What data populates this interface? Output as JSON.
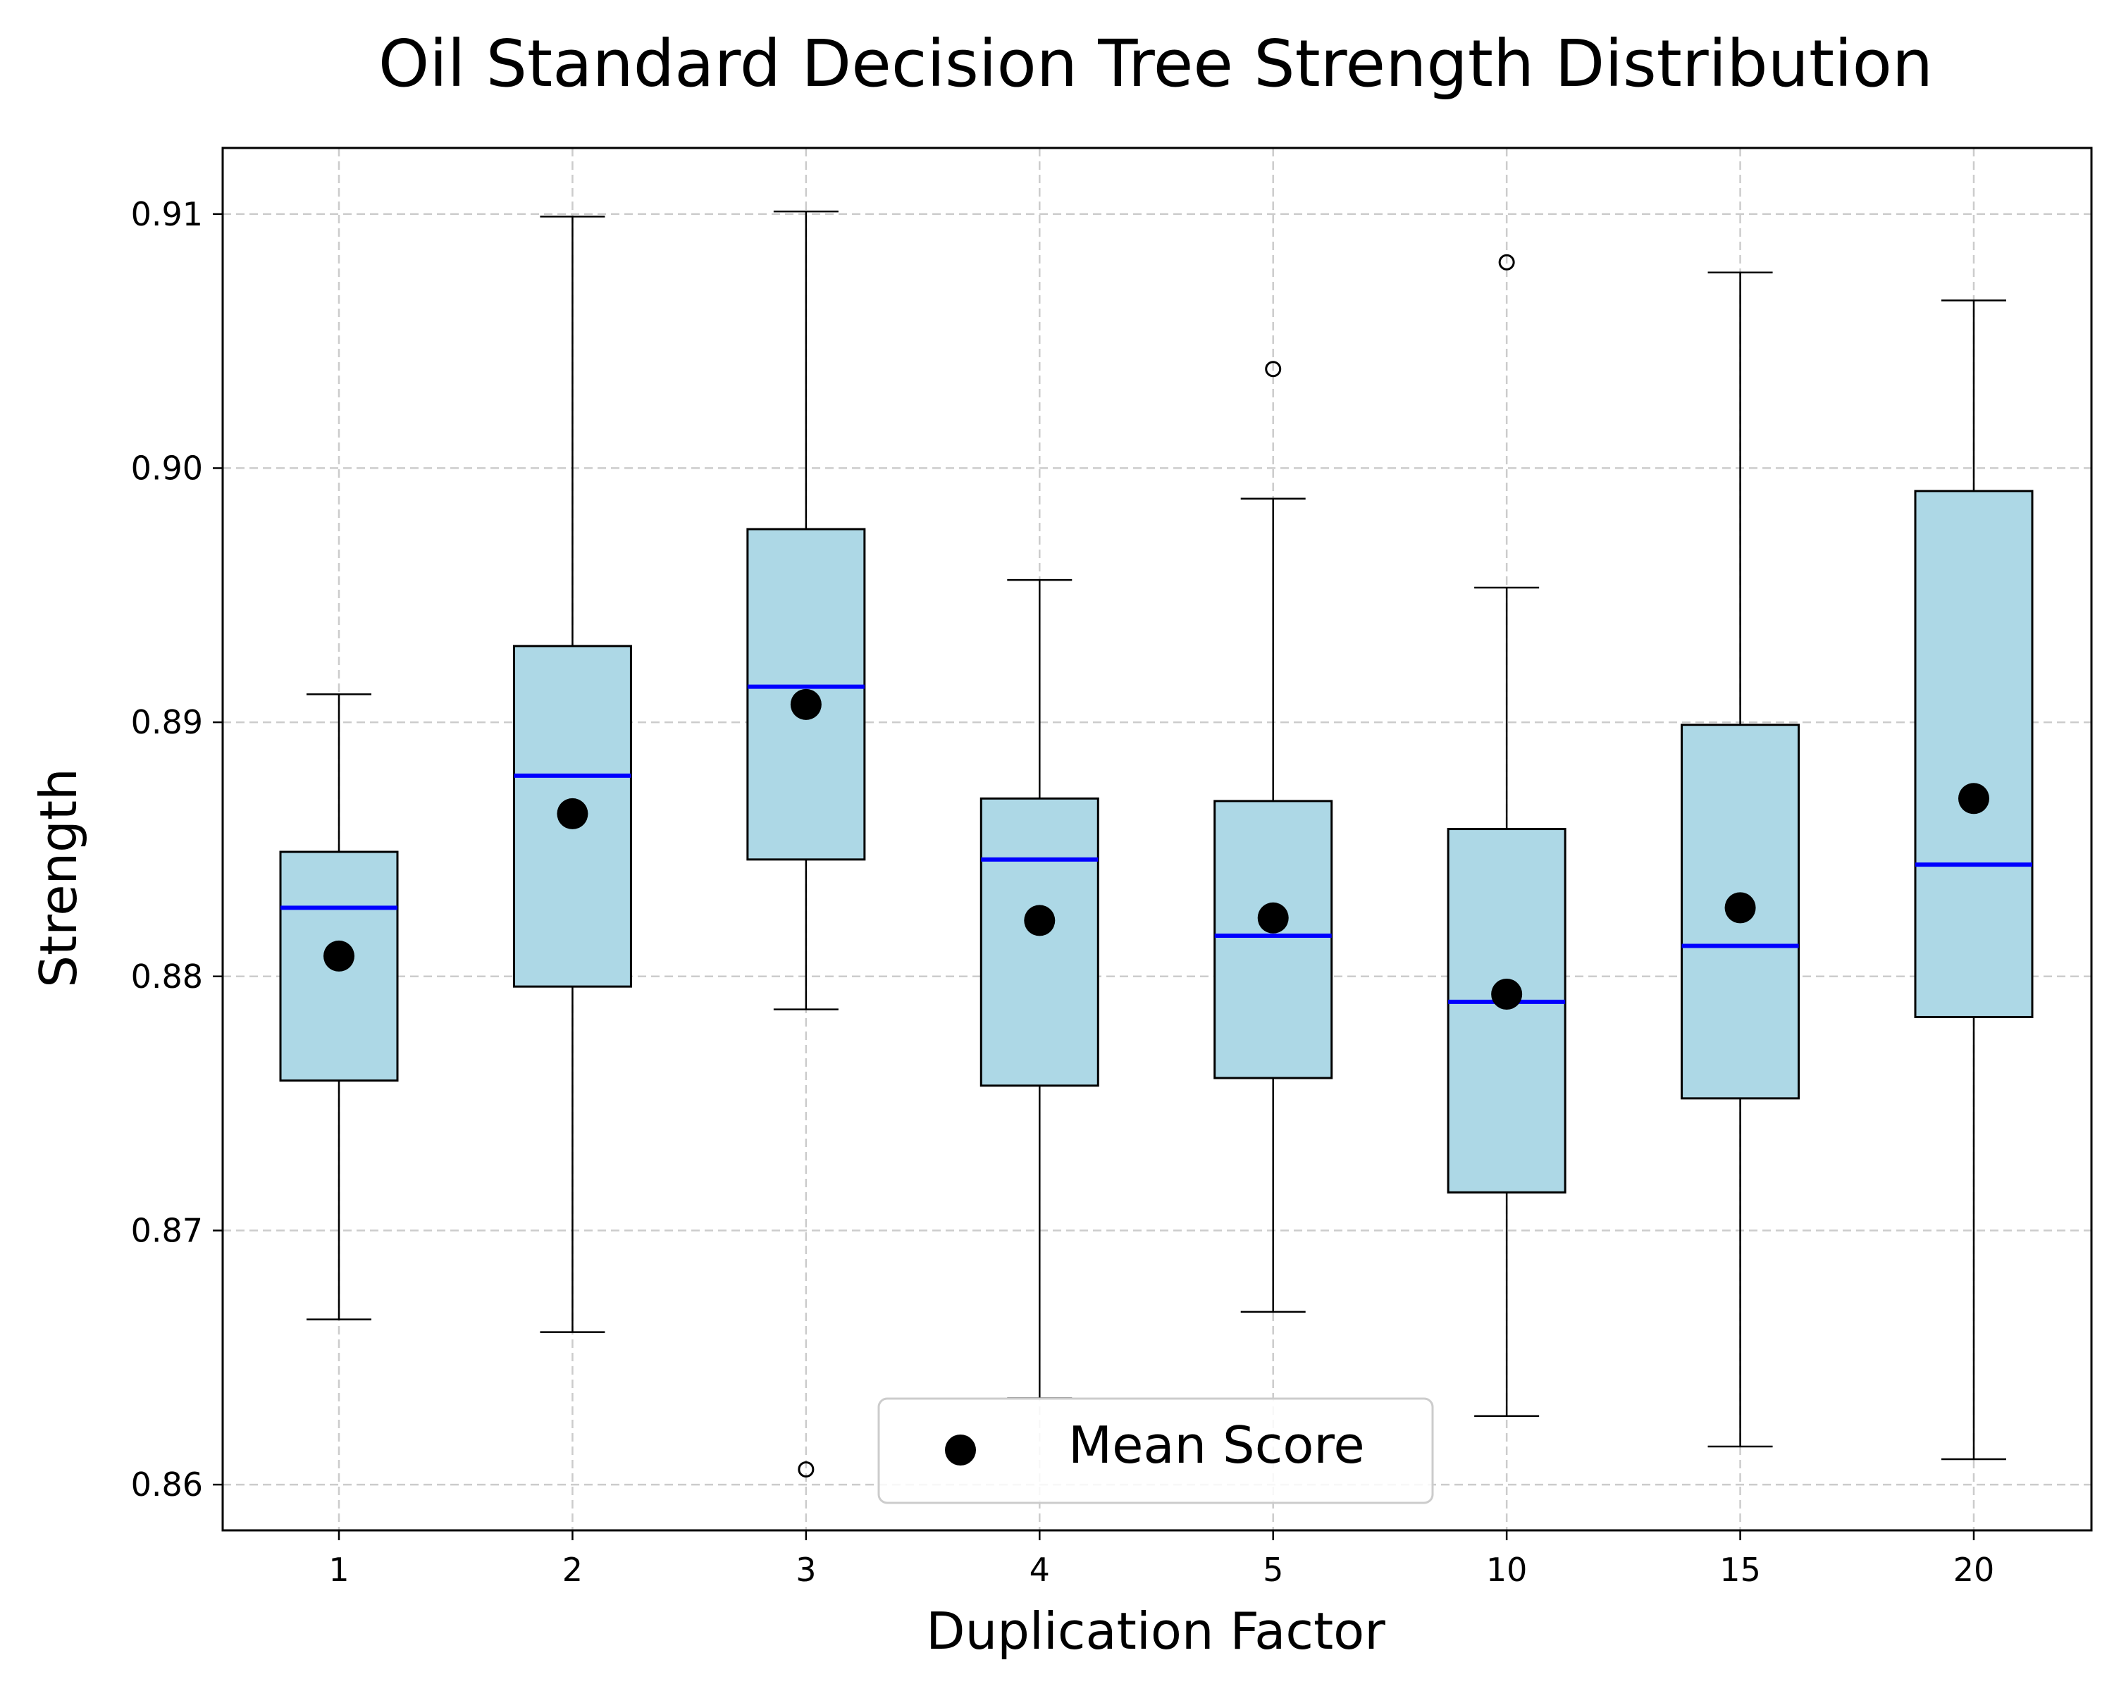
{
  "chart_data": {
    "type": "box",
    "title": "Oil Standard Decision Tree Strength Distribution",
    "xlabel": "Duplication Factor",
    "ylabel": "Strength",
    "ylim": [
      0.8582,
      0.9126
    ],
    "yticks": [
      "0.86",
      "0.87",
      "0.88",
      "0.89",
      "0.90",
      "0.91"
    ],
    "grid": true,
    "legend_position": "bottom-center",
    "legend": [
      "Mean Score"
    ],
    "colors": {
      "box_fill": "#add8e6",
      "median": "#0000ff",
      "mean": "#000000",
      "grid": "#cccccc",
      "outline": "#000000"
    },
    "categories": [
      "1",
      "2",
      "3",
      "4",
      "5",
      "10",
      "15",
      "20"
    ],
    "boxes": [
      {
        "category": "1",
        "whisker_low": 0.8665,
        "q1": 0.8759,
        "median": 0.8827,
        "q3": 0.8849,
        "whisker_high": 0.8911,
        "mean": 0.8808,
        "outliers": []
      },
      {
        "category": "2",
        "whisker_low": 0.866,
        "q1": 0.8796,
        "median": 0.8879,
        "q3": 0.893,
        "whisker_high": 0.9099,
        "mean": 0.8864,
        "outliers": []
      },
      {
        "category": "3",
        "whisker_low": 0.8787,
        "q1": 0.8846,
        "median": 0.8914,
        "q3": 0.8976,
        "whisker_high": 0.9101,
        "mean": 0.8907,
        "outliers": [
          0.8606
        ]
      },
      {
        "category": "4",
        "whisker_low": 0.8634,
        "q1": 0.8757,
        "median": 0.8846,
        "q3": 0.887,
        "whisker_high": 0.8956,
        "mean": 0.8822,
        "outliers": []
      },
      {
        "category": "5",
        "whisker_low": 0.8668,
        "q1": 0.876,
        "median": 0.8816,
        "q3": 0.8869,
        "whisker_high": 0.8988,
        "mean": 0.8823,
        "outliers": [
          0.9039
        ]
      },
      {
        "category": "10",
        "whisker_low": 0.8627,
        "q1": 0.8715,
        "median": 0.879,
        "q3": 0.8858,
        "whisker_high": 0.8953,
        "mean": 0.8793,
        "outliers": [
          0.9081
        ]
      },
      {
        "category": "15",
        "whisker_low": 0.8615,
        "q1": 0.8752,
        "median": 0.8812,
        "q3": 0.8899,
        "whisker_high": 0.9077,
        "mean": 0.8827,
        "outliers": []
      },
      {
        "category": "20",
        "whisker_low": 0.861,
        "q1": 0.8784,
        "median": 0.8844,
        "q3": 0.8991,
        "whisker_high": 0.9066,
        "mean": 0.887,
        "outliers": []
      }
    ]
  }
}
